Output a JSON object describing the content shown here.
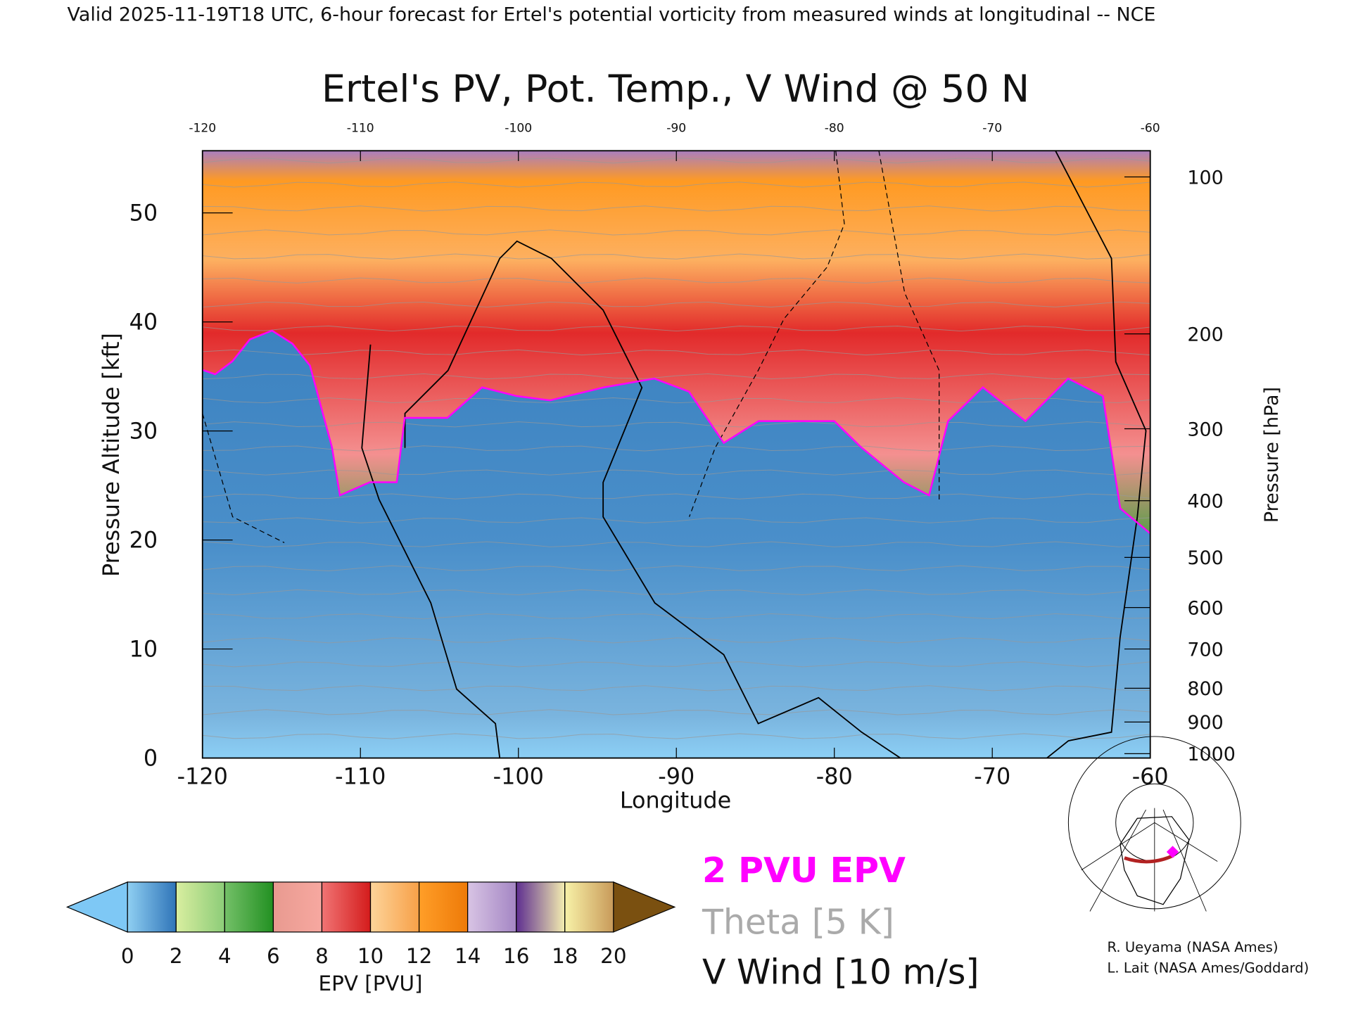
{
  "header": "Valid 2025-11-19T18 UTC, 6-hour forecast for Ertel's potential vorticity from measured winds at longitudinal -- NCE",
  "chart_data": {
    "type": "heatmap",
    "title": "Ertel's PV, Pot. Temp., V Wind @ 50 N",
    "xlabel": "Longitude",
    "ylabel": "Pressure Altitude [kft]",
    "y2label": "Pressure [hPa]",
    "xlim": [
      -120,
      -60
    ],
    "ylim": [
      0,
      55.7
    ],
    "x_ticks": [
      "-120",
      "-110",
      "-100",
      "-90",
      "-80",
      "-70",
      "-60"
    ],
    "x_tick_values": [
      -120,
      -110,
      -100,
      -90,
      -80,
      -70,
      -60
    ],
    "top_ticks": [
      "-120",
      "-110",
      "-100",
      "-90",
      "-80",
      "-70",
      "-60"
    ],
    "y_ticks": [
      "0",
      "10",
      "20",
      "30",
      "40",
      "50"
    ],
    "y_tick_values": [
      0,
      10,
      20,
      30,
      40,
      50
    ],
    "pressure_ticks": [
      {
        "label": "100",
        "kft": 53.3
      },
      {
        "label": "200",
        "kft": 38.9
      },
      {
        "label": "300",
        "kft": 30.2
      },
      {
        "label": "400",
        "kft": 23.6
      },
      {
        "label": "500",
        "kft": 18.4
      },
      {
        "label": "600",
        "kft": 13.8
      },
      {
        "label": "700",
        "kft": 10.0
      },
      {
        "label": "800",
        "kft": 6.4
      },
      {
        "label": "900",
        "kft": 3.3
      },
      {
        "label": "1000",
        "kft": 0.4
      }
    ],
    "tropopause_2pvu": {
      "name": "2 PVU EPV",
      "lon": [
        -120,
        -119.2,
        -118.1,
        -117,
        -115.6,
        -114.3,
        -113.2,
        -111.8,
        -111.3,
        -109.4,
        -107.7,
        -107.2,
        -104.5,
        -102.3,
        -100.1,
        -98,
        -94.6,
        -91.4,
        -89.2,
        -87,
        -84.8,
        -82.1,
        -80,
        -78.3,
        -75.6,
        -74,
        -72.8,
        -70.6,
        -67.9,
        -65.2,
        -63,
        -61.9,
        -60
      ],
      "kft": [
        35.6,
        35.2,
        36.4,
        38.4,
        39.2,
        38,
        36,
        28.5,
        24.1,
        25.3,
        25.3,
        31.2,
        31.2,
        34,
        33.2,
        32.8,
        34,
        34.8,
        33.6,
        28.9,
        30.9,
        30.9,
        30.9,
        28.5,
        25.3,
        24.1,
        30.9,
        34,
        30.9,
        34.8,
        33.2,
        22.9,
        20.6
      ]
    },
    "colorbar": {
      "label": "EPV [PVU]",
      "ticks": [
        "0",
        "2",
        "4",
        "6",
        "8",
        "10",
        "12",
        "14",
        "16",
        "18",
        "20"
      ],
      "segments": [
        [
          "#8fcff2",
          "#2f74b8"
        ],
        [
          "#d9eea0",
          "#8ccc78"
        ],
        [
          "#74c068",
          "#229022"
        ],
        [
          "#e89a90",
          "#f7a8a0"
        ],
        [
          "#f07474",
          "#d41c1c"
        ],
        [
          "#fdd49a",
          "#f7a048"
        ],
        [
          "#ff9e28",
          "#ee7a08"
        ],
        [
          "#d8c4e4",
          "#a486c4"
        ],
        [
          "#5e2e90",
          "#f4eeb0"
        ],
        [
          "#f8f2a8",
          "#c89a5a"
        ]
      ],
      "under_color": "#7ec8f5",
      "over_color": "#7a5010"
    },
    "legend": {
      "pv": "2 PVU EPV",
      "theta": "Theta [5 K]",
      "wind": "V Wind [10 m/s]",
      "pv_color": "#ff00ff",
      "theta_color": "#aaaaaa"
    }
  },
  "credits": [
    "R. Ueyama (NASA Ames)",
    "L. Lait (NASA Ames/Goddard)"
  ]
}
